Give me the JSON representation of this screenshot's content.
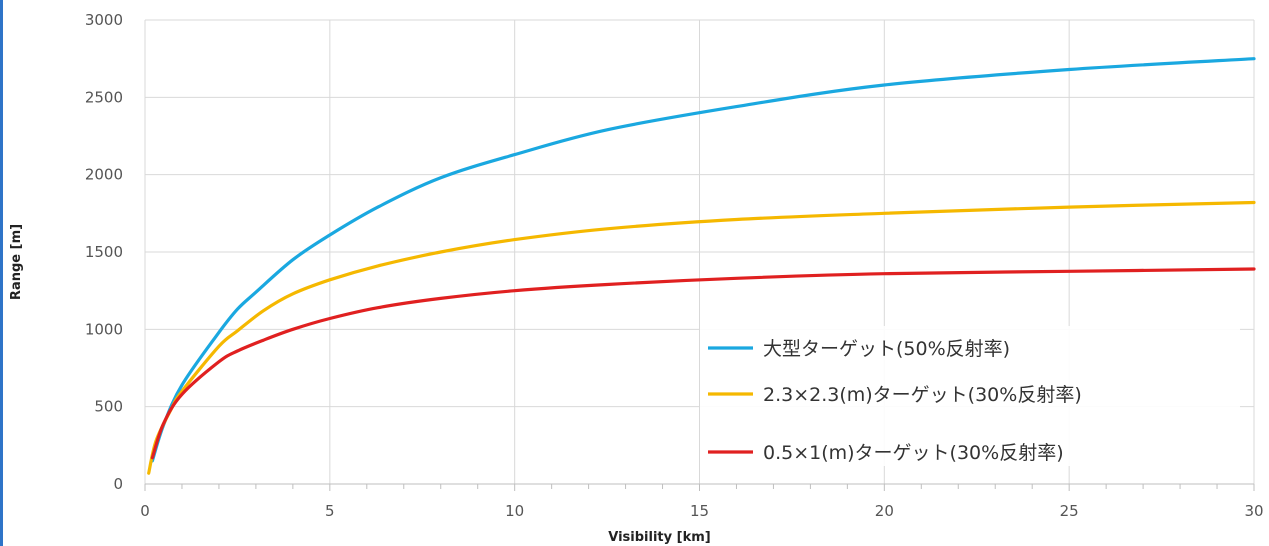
{
  "chart_data": {
    "type": "line",
    "xlabel": "Visibility [km]",
    "ylabel": "Range [m]",
    "xlim": [
      0,
      30
    ],
    "ylim": [
      0,
      3000
    ],
    "xticks": [
      0,
      5,
      10,
      15,
      20,
      25,
      30
    ],
    "xtick_labels": [
      "0",
      "5",
      "10",
      "15",
      "20",
      "25",
      "30"
    ],
    "yticks": [
      0,
      500,
      1000,
      1500,
      2000,
      2500,
      3000
    ],
    "ytick_labels": [
      "0",
      "500",
      "1000",
      "1500",
      "2000",
      "2500",
      "3000"
    ],
    "grid": true,
    "legend_position": "bottom-right",
    "series": [
      {
        "name": "大型ターゲット(50%反射率)",
        "color": "#1aa8e0",
        "x": [
          0.2,
          0.5,
          1,
          2,
          2.5,
          3,
          4,
          5,
          6.3,
          8,
          10,
          12.5,
          16,
          20,
          25,
          30
        ],
        "y": [
          150,
          380,
          640,
          980,
          1130,
          1240,
          1450,
          1610,
          1790,
          1980,
          2130,
          2290,
          2440,
          2580,
          2680,
          2750
        ]
      },
      {
        "name": "2.3×2.3(m)ターゲット(30%反射率)",
        "color": "#f5b800",
        "x": [
          0.1,
          0.3,
          0.7,
          1,
          2,
          2.5,
          3.2,
          4,
          5,
          6.3,
          8,
          10,
          12.5,
          16,
          20,
          25,
          30
        ],
        "y": [
          70,
          280,
          480,
          600,
          890,
          990,
          1120,
          1230,
          1320,
          1410,
          1500,
          1580,
          1650,
          1710,
          1750,
          1790,
          1820
        ]
      },
      {
        "name": "0.5×1(m)ターゲット(30%反射率)",
        "color": "#e02020",
        "x": [
          0.2,
          0.5,
          1,
          2,
          2.5,
          3.2,
          4,
          5,
          6.3,
          8,
          10,
          12.5,
          16,
          20,
          25,
          30
        ],
        "y": [
          170,
          390,
          580,
          790,
          860,
          930,
          1000,
          1070,
          1140,
          1200,
          1250,
          1290,
          1330,
          1360,
          1375,
          1390
        ]
      }
    ]
  }
}
